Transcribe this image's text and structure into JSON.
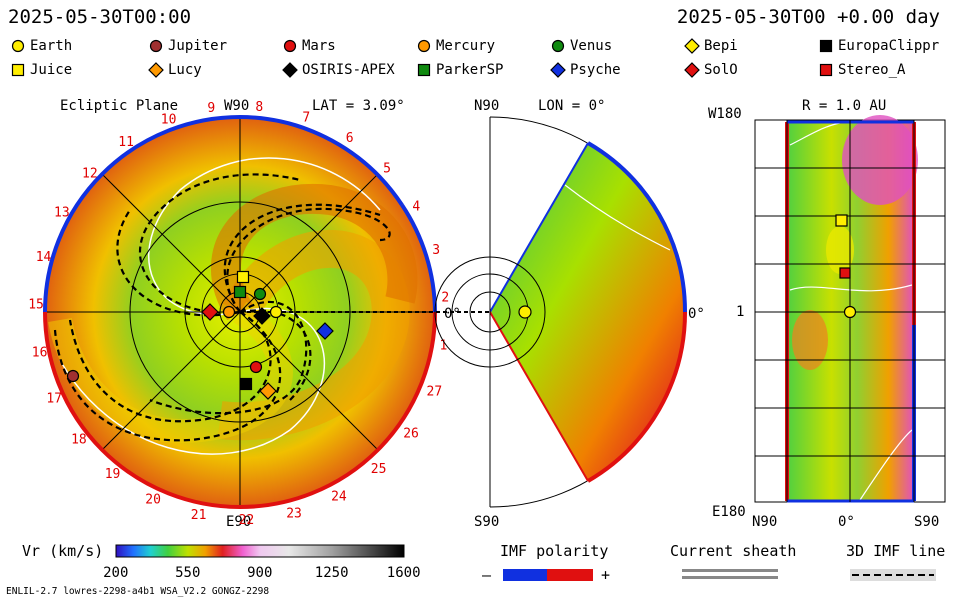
{
  "header": {
    "left_time": "2025-05-30T00:00",
    "right_time": "2025-05-30T00 +0.00 day"
  },
  "legend": [
    {
      "name": "Earth",
      "shape": "circle",
      "color": "#ffee00"
    },
    {
      "name": "Jupiter",
      "shape": "circle",
      "color": "#a03030"
    },
    {
      "name": "Mars",
      "shape": "circle",
      "color": "#e01010"
    },
    {
      "name": "Mercury",
      "shape": "circle",
      "color": "#ff9900"
    },
    {
      "name": "Venus",
      "shape": "circle",
      "color": "#108a10"
    },
    {
      "name": "Bepi",
      "shape": "diamond",
      "color": "#ffee00"
    },
    {
      "name": "EuropaClippr",
      "shape": "square",
      "color": "#000000"
    },
    {
      "name": "Juice",
      "shape": "square",
      "color": "#ffee00"
    },
    {
      "name": "Lucy",
      "shape": "diamond",
      "color": "#ff9900"
    },
    {
      "name": "OSIRIS-APEX",
      "shape": "diamond",
      "color": "#000000"
    },
    {
      "name": "ParkerSP",
      "shape": "square",
      "color": "#108a10"
    },
    {
      "name": "Psyche",
      "shape": "diamond",
      "color": "#1030e0"
    },
    {
      "name": "SolO",
      "shape": "diamond",
      "color": "#e01010"
    },
    {
      "name": "Stereo_A",
      "shape": "square",
      "color": "#e01010"
    }
  ],
  "panels": {
    "ecliptic": {
      "title": "Ecliptic Plane",
      "top": "W90",
      "lat": "LAT = 3.09°",
      "bottom": "E90",
      "angle_label": "0°"
    },
    "meridional": {
      "top": "N90",
      "lon": "LON = 0°",
      "bottom": "S90",
      "angle_label": "0°"
    },
    "radial": {
      "top_left": "W180",
      "r": "R = 1.0 AU",
      "left_mid": "1",
      "bottom_left": "E180",
      "bottom_ticks": [
        "N90",
        "0°",
        "S90"
      ]
    }
  },
  "colorbar": {
    "label": "Vr (km/s)",
    "ticks": [
      "200",
      "550",
      "900",
      "1250",
      "1600"
    ],
    "range": [
      200,
      1600
    ]
  },
  "imf": {
    "title": "IMF polarity",
    "minus": "–",
    "plus": "+",
    "colors": {
      "negative": "#1030e0",
      "positive": "#e01010"
    }
  },
  "sheath": {
    "title": "Current sheath"
  },
  "imfline": {
    "title": "3D IMF line"
  },
  "footer": {
    "left": "ENLIL-2.7 lowres-2298-a4b1 WSA_V2.2 GONGZ-2298"
  },
  "chart_data": {
    "type": "heatmap",
    "title": "",
    "variable": "Vr (km/s)",
    "vmin": 200,
    "vmax": 1600,
    "sector_labels": [
      "1",
      "2",
      "3",
      "4",
      "5",
      "6",
      "7",
      "8",
      "9",
      "10",
      "11",
      "12",
      "13",
      "14",
      "15",
      "16",
      "17",
      "18",
      "19",
      "20",
      "21",
      "22",
      "23",
      "24",
      "25",
      "26",
      "27"
    ],
    "objects_ecliptic": [
      "Earth",
      "Mercury",
      "Venus",
      "Mars",
      "Jupiter",
      "Juice",
      "ParkerSP",
      "SolO",
      "OSIRIS-APEX",
      "Psyche",
      "EuropaClippr",
      "Lucy"
    ]
  }
}
